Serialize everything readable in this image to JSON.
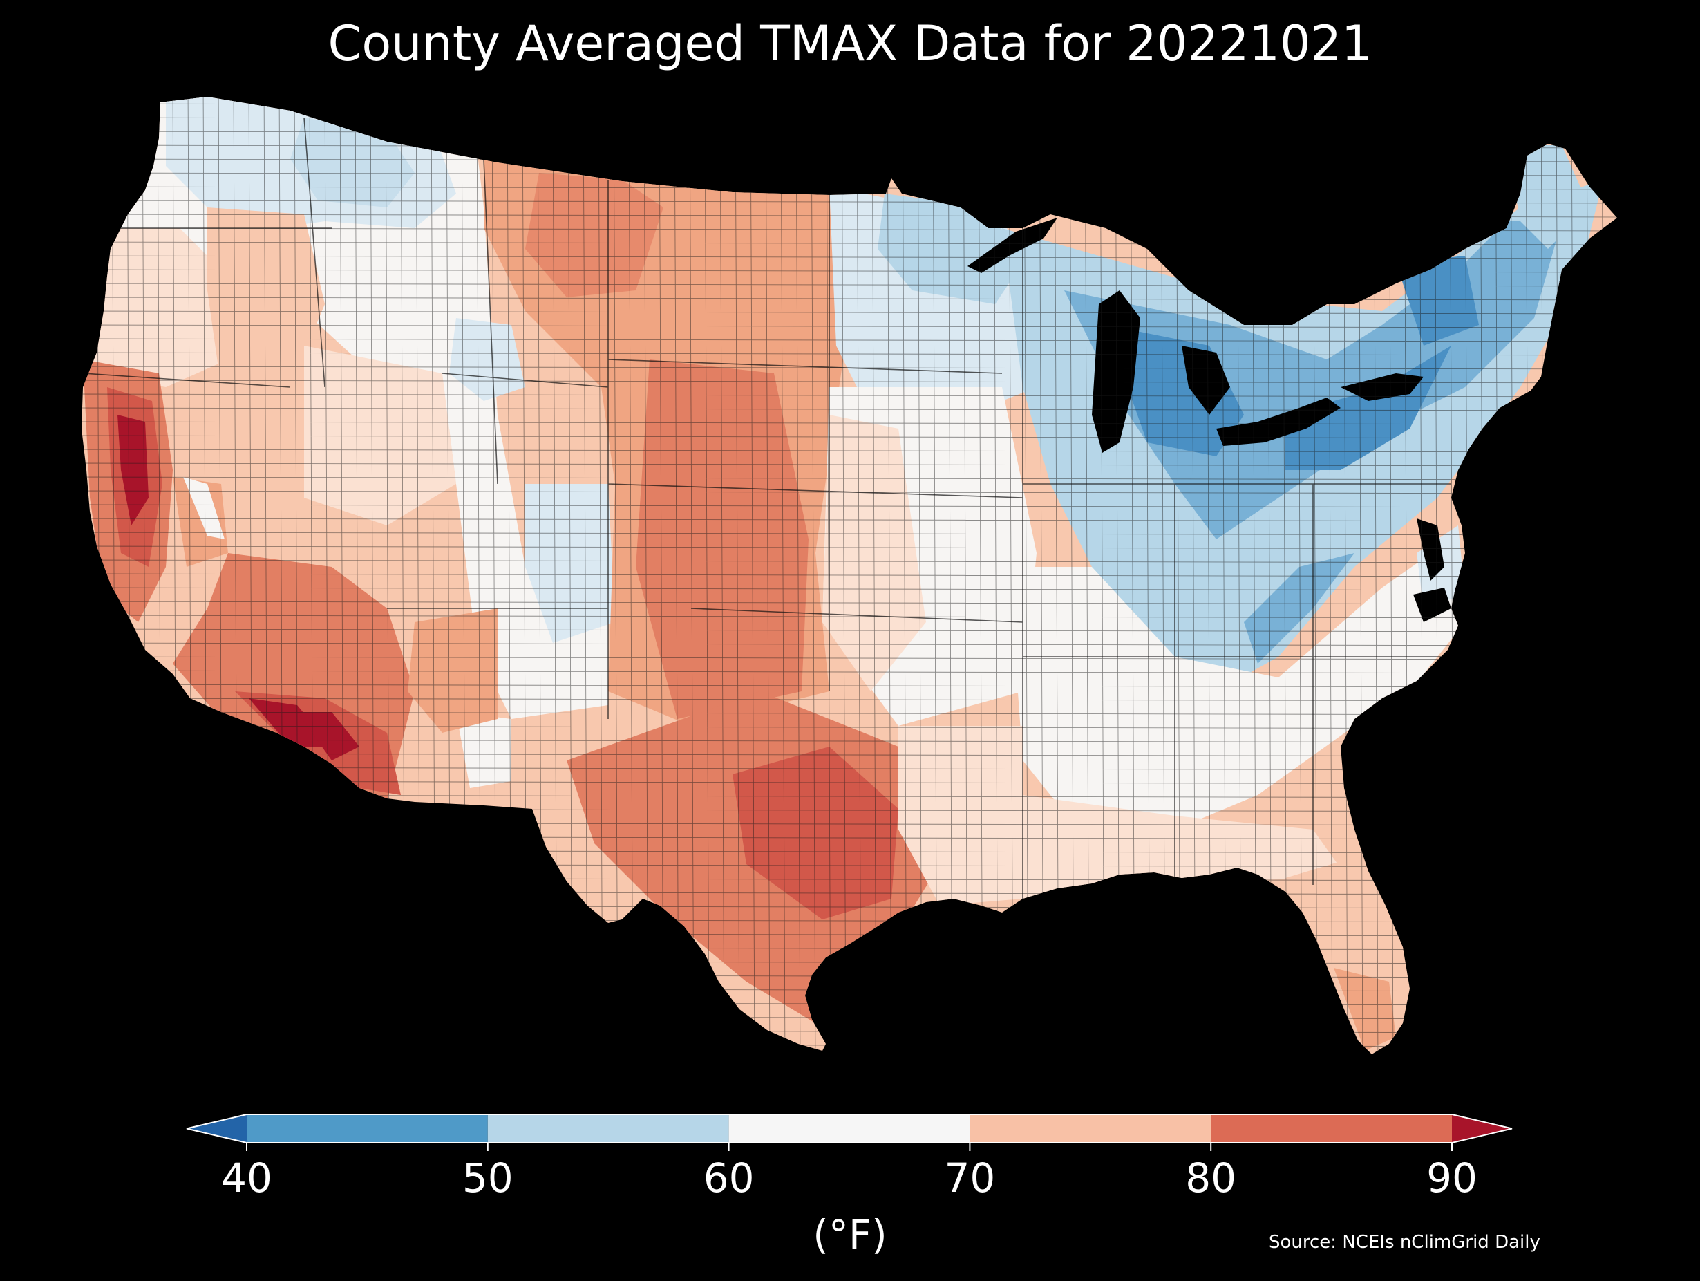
{
  "title": "County Averaged TMAX Data for 20221021",
  "source": "Source: NCEIs nClimGrid Daily",
  "colorbar": {
    "unit": "(°F)",
    "ticks": [
      "40",
      "50",
      "60",
      "70",
      "80",
      "90"
    ],
    "bins": [
      {
        "from": 40,
        "to": 50,
        "color": "#4f9ac8"
      },
      {
        "from": 50,
        "to": 60,
        "color": "#b6d6e8"
      },
      {
        "from": 60,
        "to": 70,
        "color": "#f6f6f6"
      },
      {
        "from": 70,
        "to": 80,
        "color": "#f8c1a6"
      },
      {
        "from": 80,
        "to": 90,
        "color": "#dc6b55"
      }
    ],
    "under_color": "#2364a8",
    "over_color": "#a8142a"
  },
  "palette": {
    "deep_red": "#a8142a",
    "red": "#d2584a",
    "orange_red": "#e27f63",
    "salmon": "#f0a582",
    "peach": "#f8c8ae",
    "pale_peach": "#fbe1d2",
    "white": "#f7f5f3",
    "pale_blue": "#dbe9f2",
    "light_blue": "#b6d6e8",
    "blue": "#79b1d6",
    "deep_blue": "#4a90c4",
    "background": "#000000"
  }
}
